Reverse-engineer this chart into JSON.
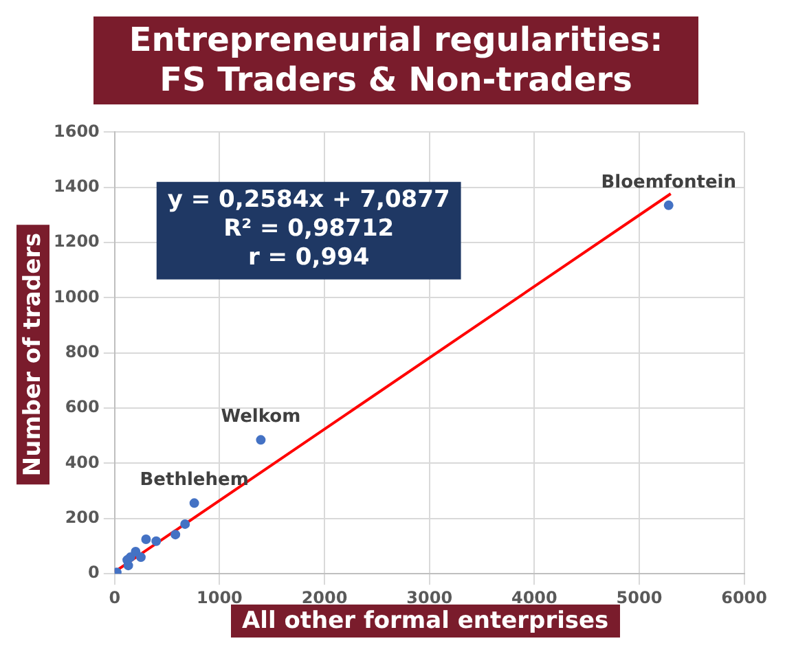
{
  "chart_data": {
    "type": "scatter",
    "title": "Entrepreneurial regularities:\nFS Traders & Non-traders",
    "xlabel": "All other formal enterprises",
    "ylabel": "Number of traders",
    "series": [
      {
        "type": "scatter",
        "color": "#4472c4",
        "marker": "circle",
        "x": [
          5280,
          1393,
          759,
          671,
          579,
          396,
          299,
          250,
          200,
          150,
          130,
          120,
          20
        ],
        "values": [
          1335,
          485,
          256,
          180,
          142,
          118,
          125,
          60,
          80,
          60,
          30,
          50,
          5
        ]
      },
      {
        "type": "line",
        "color": "#ff0000",
        "marker": "none",
        "x": [
          0,
          5300
        ],
        "values": [
          7,
          1377
        ]
      }
    ],
    "annotations": [
      "y = 0,2584x + 7,0877",
      "R² = 0,98712",
      "r = 0,994",
      {
        "text": "Bloemfontein",
        "x": 5280,
        "y": 1335
      },
      {
        "text": "Welkom",
        "x": 1393,
        "y": 485
      },
      {
        "text": "Bethlehem",
        "x": 759,
        "y": 256
      }
    ],
    "xlim": [
      0,
      6000
    ],
    "xticks": [
      0,
      1000,
      2000,
      3000,
      4000,
      5000,
      6000
    ],
    "ylim": [
      0,
      1600
    ],
    "yticks": [
      0,
      200,
      400,
      600,
      800,
      1000,
      1200,
      1400,
      1600
    ],
    "grid": true,
    "legend": false,
    "line_style": "solid"
  }
}
